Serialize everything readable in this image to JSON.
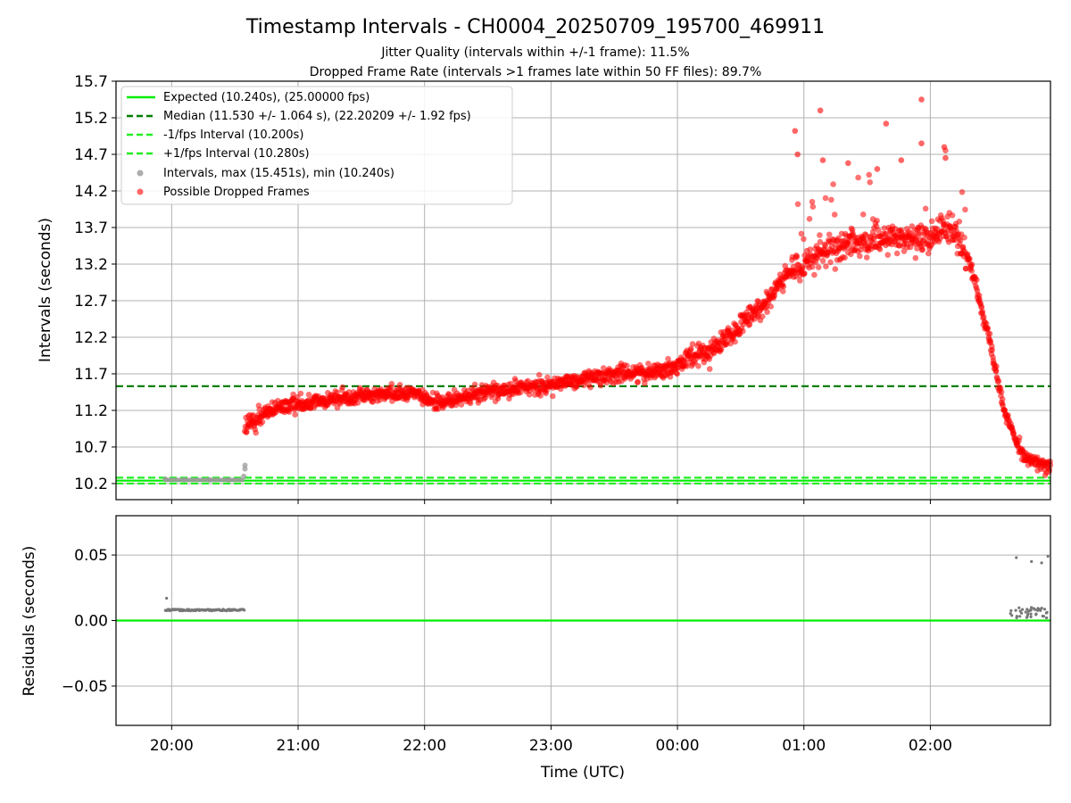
{
  "figure": {
    "title": "Timestamp Intervals - CH0004_20250709_195700_469911",
    "subtitle_1": "Jitter Quality (intervals within +/-1 frame): 11.5%",
    "subtitle_2": "Dropped Frame Rate (intervals >1 frames late within 50 FF files): 89.7%"
  },
  "colors": {
    "expected": "#00ee00",
    "median": "#008000",
    "bounds": "#22ee22",
    "intervals": "#999999",
    "dropped": "#ff0000",
    "residuals": "#777777",
    "grid": "#b0b0b0"
  },
  "chart_data": [
    {
      "type": "scatter",
      "ylabel": "Intervals (seconds)",
      "xlim_hours": [
        19.56,
        26.95
      ],
      "ylim": [
        9.98,
        15.7
      ],
      "yticks": [
        10.2,
        10.7,
        11.2,
        11.7,
        12.2,
        12.7,
        13.2,
        13.7,
        14.2,
        14.7,
        15.2,
        15.7
      ],
      "ytick_labels": [
        "10.2",
        "10.7",
        "11.2",
        "11.7",
        "12.2",
        "12.7",
        "13.2",
        "13.7",
        "14.2",
        "14.7",
        "15.2",
        "15.7"
      ],
      "grid": true,
      "legend_position": "top-left",
      "legend": [
        {
          "label": "Expected (10.240s), (25.00000 fps)",
          "style": "solid",
          "color": "#00ee00"
        },
        {
          "label": "Median (11.530 +/- 1.064 s), (22.20209 +/- 1.92 fps)",
          "style": "dashed",
          "color": "#008000"
        },
        {
          "label": "-1/fps Interval (10.200s)",
          "style": "dashed",
          "color": "#22ee22"
        },
        {
          "label": "+1/fps Interval (10.280s)",
          "style": "dashed",
          "color": "#22ee22"
        },
        {
          "label": "Intervals, max (15.451s), min (10.240s)",
          "style": "marker",
          "color": "#999999"
        },
        {
          "label": "Possible Dropped Frames",
          "style": "marker",
          "color": "#ff0000"
        }
      ],
      "reference_lines": {
        "expected": 10.24,
        "median": 11.53,
        "minus_1fps": 10.2,
        "plus_1fps": 10.28
      },
      "series": [
        {
          "name": "Possible Dropped Frames",
          "trend_knots": [
            {
              "t": 20.58,
              "y": 10.95
            },
            {
              "t": 20.75,
              "y": 11.18
            },
            {
              "t": 21.0,
              "y": 11.3
            },
            {
              "t": 21.5,
              "y": 11.4
            },
            {
              "t": 21.9,
              "y": 11.45
            },
            {
              "t": 22.1,
              "y": 11.3
            },
            {
              "t": 22.5,
              "y": 11.45
            },
            {
              "t": 23.0,
              "y": 11.55
            },
            {
              "t": 23.5,
              "y": 11.7
            },
            {
              "t": 23.9,
              "y": 11.75
            },
            {
              "t": 24.3,
              "y": 12.05
            },
            {
              "t": 24.6,
              "y": 12.5
            },
            {
              "t": 24.9,
              "y": 13.1
            },
            {
              "t": 25.2,
              "y": 13.4
            },
            {
              "t": 25.6,
              "y": 13.55
            },
            {
              "t": 25.9,
              "y": 13.55
            },
            {
              "t": 26.15,
              "y": 13.7
            },
            {
              "t": 26.3,
              "y": 13.3
            },
            {
              "t": 26.45,
              "y": 12.3
            },
            {
              "t": 26.6,
              "y": 11.1
            },
            {
              "t": 26.75,
              "y": 10.55
            },
            {
              "t": 26.95,
              "y": 10.4
            }
          ],
          "outliers": [
            {
              "t": 25.13,
              "y": 15.3
            },
            {
              "t": 25.93,
              "y": 15.45
            },
            {
              "t": 25.65,
              "y": 15.12
            },
            {
              "t": 24.93,
              "y": 15.02
            },
            {
              "t": 26.11,
              "y": 14.8
            },
            {
              "t": 25.15,
              "y": 14.62
            },
            {
              "t": 25.35,
              "y": 14.58
            },
            {
              "t": 25.58,
              "y": 14.5
            },
            {
              "t": 25.93,
              "y": 14.85
            },
            {
              "t": 24.95,
              "y": 14.7
            },
            {
              "t": 26.12,
              "y": 14.65
            },
            {
              "t": 25.77,
              "y": 14.62
            }
          ]
        },
        {
          "name": "Intervals",
          "points": [
            {
              "t": 19.95,
              "y": 10.26
            },
            {
              "t": 20.1,
              "y": 10.25
            },
            {
              "t": 20.3,
              "y": 10.25
            },
            {
              "t": 20.45,
              "y": 10.25
            },
            {
              "t": 20.57,
              "y": 10.3
            },
            {
              "t": 20.58,
              "y": 10.4
            },
            {
              "t": 20.58,
              "y": 10.45
            }
          ]
        }
      ]
    },
    {
      "type": "scatter",
      "ylabel": "Residuals (seconds)",
      "xlabel": "Time (UTC)",
      "xlim_hours": [
        19.56,
        26.95
      ],
      "ylim": [
        -0.08,
        0.08
      ],
      "yticks": [
        -0.05,
        0.0,
        0.05
      ],
      "ytick_labels": [
        "−0.05",
        "0.00",
        "0.05"
      ],
      "xticks_hours": [
        20,
        21,
        22,
        23,
        24,
        25,
        26
      ],
      "xtick_labels": [
        "20:00",
        "21:00",
        "22:00",
        "23:00",
        "00:00",
        "01:00",
        "02:00"
      ],
      "grid": true,
      "zero_line": 0.0,
      "series": [
        {
          "name": "residuals-early",
          "t_range": [
            19.95,
            20.58
          ],
          "y": 0.008,
          "outlier": {
            "t": 19.96,
            "y": 0.017
          }
        },
        {
          "name": "residuals-late",
          "t_range": [
            26.62,
            26.95
          ],
          "y_range": [
            0.002,
            0.01
          ],
          "outliers": [
            {
              "t": 26.68,
              "y": 0.048
            },
            {
              "t": 26.8,
              "y": 0.045
            },
            {
              "t": 26.88,
              "y": 0.044
            },
            {
              "t": 26.93,
              "y": 0.049
            }
          ]
        }
      ]
    }
  ]
}
